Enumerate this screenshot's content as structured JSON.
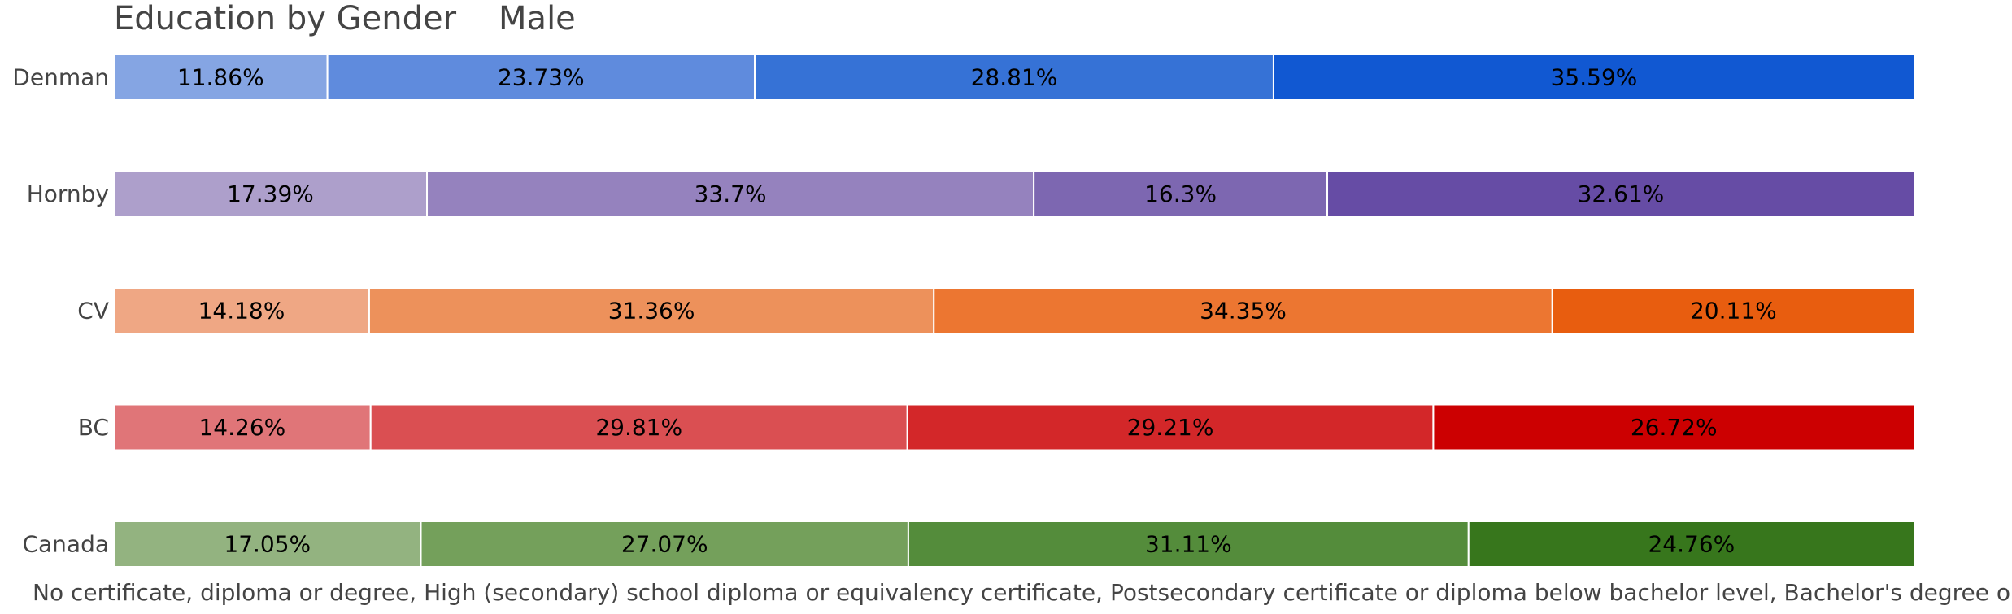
{
  "chart_data": {
    "type": "bar",
    "orientation": "horizontal",
    "stacked": true,
    "normalized": true,
    "title": "Education by Gender",
    "subtitle": "Male",
    "categories": [
      "Denman",
      "Hornby",
      "CV",
      "BC",
      "Canada"
    ],
    "segment_labels": [
      [
        "11.86%",
        "23.73%",
        "28.81%",
        "35.59%"
      ],
      [
        "17.39%",
        "33.7%",
        "16.3%",
        "32.61%"
      ],
      [
        "14.18%",
        "31.36%",
        "34.35%",
        "20.11%"
      ],
      [
        "14.26%",
        "29.81%",
        "29.21%",
        "26.72%"
      ],
      [
        "17.05%",
        "27.07%",
        "31.11%",
        "24.76%"
      ]
    ],
    "values": [
      [
        11.86,
        23.73,
        28.81,
        35.59
      ],
      [
        17.39,
        33.7,
        16.3,
        32.61
      ],
      [
        14.18,
        31.36,
        34.35,
        20.11
      ],
      [
        14.26,
        29.81,
        29.21,
        26.72
      ],
      [
        17.05,
        27.07,
        31.11,
        24.76
      ]
    ],
    "category_colors": [
      [
        "#85a5e3",
        "#5f8bdd",
        "#3672d6",
        "#1158d2"
      ],
      [
        "#ad9fcb",
        "#9582be",
        "#7d67b1",
        "#664ca5"
      ],
      [
        "#efa784",
        "#ed915b",
        "#ec7631",
        "#e85d0f"
      ],
      [
        "#e07578",
        "#da4f52",
        "#d32729",
        "#cc0001"
      ],
      [
        "#93b380",
        "#74a05b",
        "#548c3b",
        "#37761c"
      ]
    ],
    "legend_text": "No certificate, diploma or degree, High (secondary) school diploma or equivalency certificate, Postsecondary certificate or diploma below bachelor level, Bachelor's degree or",
    "xlim": [
      0,
      100
    ],
    "grid": false
  }
}
